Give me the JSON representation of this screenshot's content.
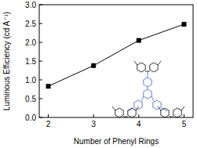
{
  "chart_data": {
    "type": "line",
    "x_label": "Number of Phenyl Rings",
    "y_label": "Luminous Efficiency (cd A⁻¹)",
    "x": [
      2,
      3,
      4,
      5
    ],
    "series": [
      {
        "name": "Luminous Efficiency",
        "color": "#000000",
        "marker": "square",
        "line_style": "solid",
        "values": [
          0.83,
          1.38,
          2.05,
          2.48
        ]
      }
    ],
    "xlim": [
      1.8,
      5.2
    ],
    "xticks": [
      2,
      3,
      4,
      5
    ],
    "ylim": [
      0,
      3
    ],
    "yticks": [
      {
        "value": 0,
        "label": "0.0"
      },
      {
        "value": 0.5,
        "label": "0.5"
      },
      {
        "value": 1,
        "label": "1.0"
      },
      {
        "value": 1.5,
        "label": "1.5"
      },
      {
        "value": 2,
        "label": "2.0"
      },
      {
        "value": 2.5,
        "label": "2.5"
      },
      {
        "value": 3,
        "label": "3.0"
      }
    ],
    "grid": false
  }
}
